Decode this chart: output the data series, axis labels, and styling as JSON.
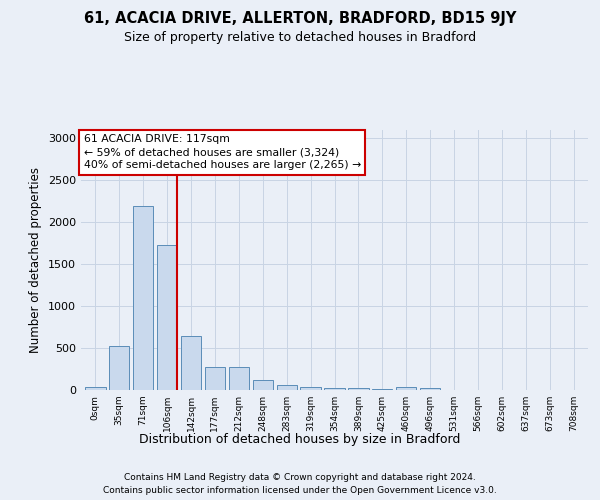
{
  "title1": "61, ACACIA DRIVE, ALLERTON, BRADFORD, BD15 9JY",
  "title2": "Size of property relative to detached houses in Bradford",
  "xlabel": "Distribution of detached houses by size in Bradford",
  "ylabel": "Number of detached properties",
  "categories": [
    "0sqm",
    "35sqm",
    "71sqm",
    "106sqm",
    "142sqm",
    "177sqm",
    "212sqm",
    "248sqm",
    "283sqm",
    "319sqm",
    "354sqm",
    "389sqm",
    "425sqm",
    "460sqm",
    "496sqm",
    "531sqm",
    "566sqm",
    "602sqm",
    "637sqm",
    "673sqm",
    "708sqm"
  ],
  "values": [
    30,
    525,
    2195,
    1730,
    640,
    280,
    280,
    120,
    60,
    35,
    25,
    25,
    10,
    30,
    20,
    0,
    0,
    0,
    0,
    0,
    0
  ],
  "bar_color": "#c9d9ed",
  "bar_edge_color": "#5b8db8",
  "grid_color": "#c8d4e4",
  "vline_color": "#cc0000",
  "annotation_text": "61 ACACIA DRIVE: 117sqm\n← 59% of detached houses are smaller (3,324)\n40% of semi-detached houses are larger (2,265) →",
  "annotation_box_color": "#ffffff",
  "annotation_box_edge_color": "#cc0000",
  "ylim": [
    0,
    3100
  ],
  "yticks": [
    0,
    500,
    1000,
    1500,
    2000,
    2500,
    3000
  ],
  "footer1": "Contains HM Land Registry data © Crown copyright and database right 2024.",
  "footer2": "Contains public sector information licensed under the Open Government Licence v3.0.",
  "bg_color": "#eaeff7"
}
